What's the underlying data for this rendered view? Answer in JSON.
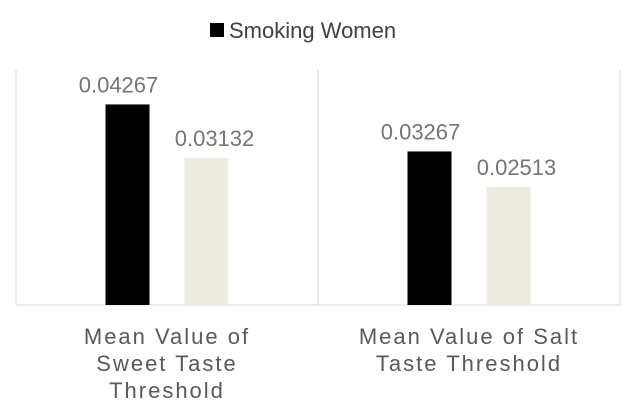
{
  "chart_data": {
    "type": "bar",
    "categories": [
      [
        "Mean Value of",
        "Sweet Taste",
        "Threshold"
      ],
      [
        "Mean Value of Salt",
        "Taste Threshold"
      ]
    ],
    "series": [
      {
        "name": "Smoking Women",
        "color": "#000000",
        "values": [
          0.04267,
          0.03267
        ],
        "labels": [
          "0.04267",
          "0.03267"
        ]
      },
      {
        "name": "",
        "color": "#edebe2",
        "values": [
          0.03132,
          0.02513
        ],
        "labels": [
          "0.03132",
          "0.02513"
        ]
      }
    ],
    "ylim": [
      0,
      0.05
    ],
    "grid": false,
    "legend_position": "top",
    "colors": {
      "axis": "#d9d9d9"
    }
  }
}
